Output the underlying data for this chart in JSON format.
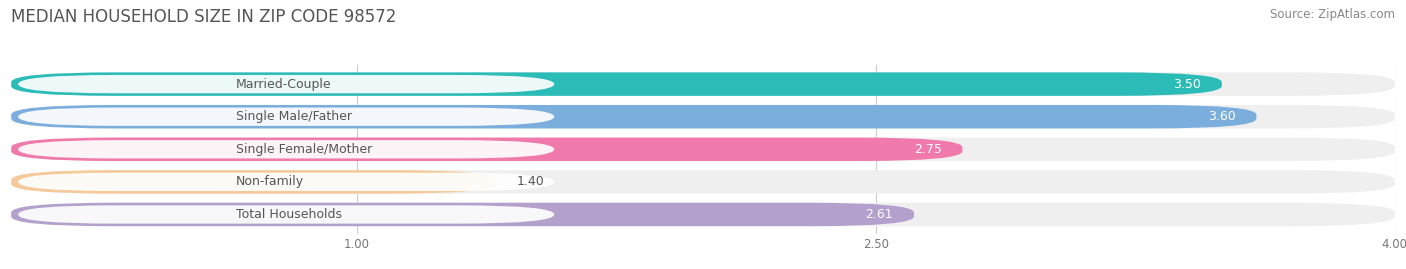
{
  "title": "MEDIAN HOUSEHOLD SIZE IN ZIP CODE 98572",
  "source": "Source: ZipAtlas.com",
  "categories": [
    "Married-Couple",
    "Single Male/Father",
    "Single Female/Mother",
    "Non-family",
    "Total Households"
  ],
  "values": [
    3.5,
    3.6,
    2.75,
    1.4,
    2.61
  ],
  "bar_colors": [
    "#2bbcb8",
    "#7baedd",
    "#f07aab",
    "#f5c99a",
    "#b3a0cc"
  ],
  "bar_bg_colors": [
    "#efefef",
    "#efefef",
    "#efefef",
    "#efefef",
    "#efefef"
  ],
  "value_dark_color": "#555555",
  "value_light_color": "#ffffff",
  "label_bg_color": "#ffffff",
  "label_text_color": "#555555",
  "title_color": "#555555",
  "source_color": "#888888",
  "grid_color": "#cccccc",
  "fig_bg_color": "#ffffff",
  "xlim_min": 0.0,
  "xlim_max": 4.0,
  "xticks": [
    1.0,
    2.5,
    4.0
  ],
  "bar_height": 0.72,
  "title_fontsize": 12,
  "label_fontsize": 9,
  "value_fontsize": 9,
  "tick_fontsize": 8.5,
  "source_fontsize": 8.5
}
